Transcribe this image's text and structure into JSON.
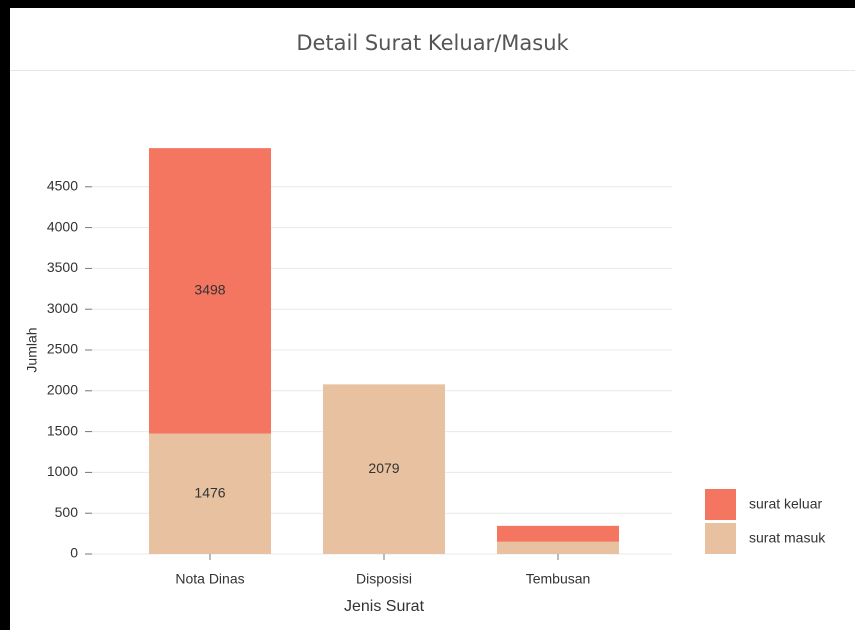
{
  "chart_data": {
    "type": "stacked_bar",
    "title": "Detail Surat Keluar/Masuk",
    "x_label": "Jenis Surat",
    "y_label": "Jumlah",
    "categories": [
      "Nota Dinas",
      "Disposisi",
      "Tembusan"
    ],
    "series": [
      {
        "name": "surat masuk",
        "color": "#e8c1a0",
        "values": [
          1476,
          2079,
          150
        ],
        "value_labels": [
          1476,
          2079,
          null
        ]
      },
      {
        "name": "surat keluar",
        "color": "#f47560",
        "values": [
          3498,
          0,
          195
        ],
        "value_labels": [
          3498,
          null,
          null
        ]
      }
    ],
    "ylim": [
      0,
      5000
    ],
    "yticks": [
      0,
      500,
      1000,
      1500,
      2000,
      2500,
      3000,
      3500,
      4000,
      4500
    ],
    "grid": true
  }
}
